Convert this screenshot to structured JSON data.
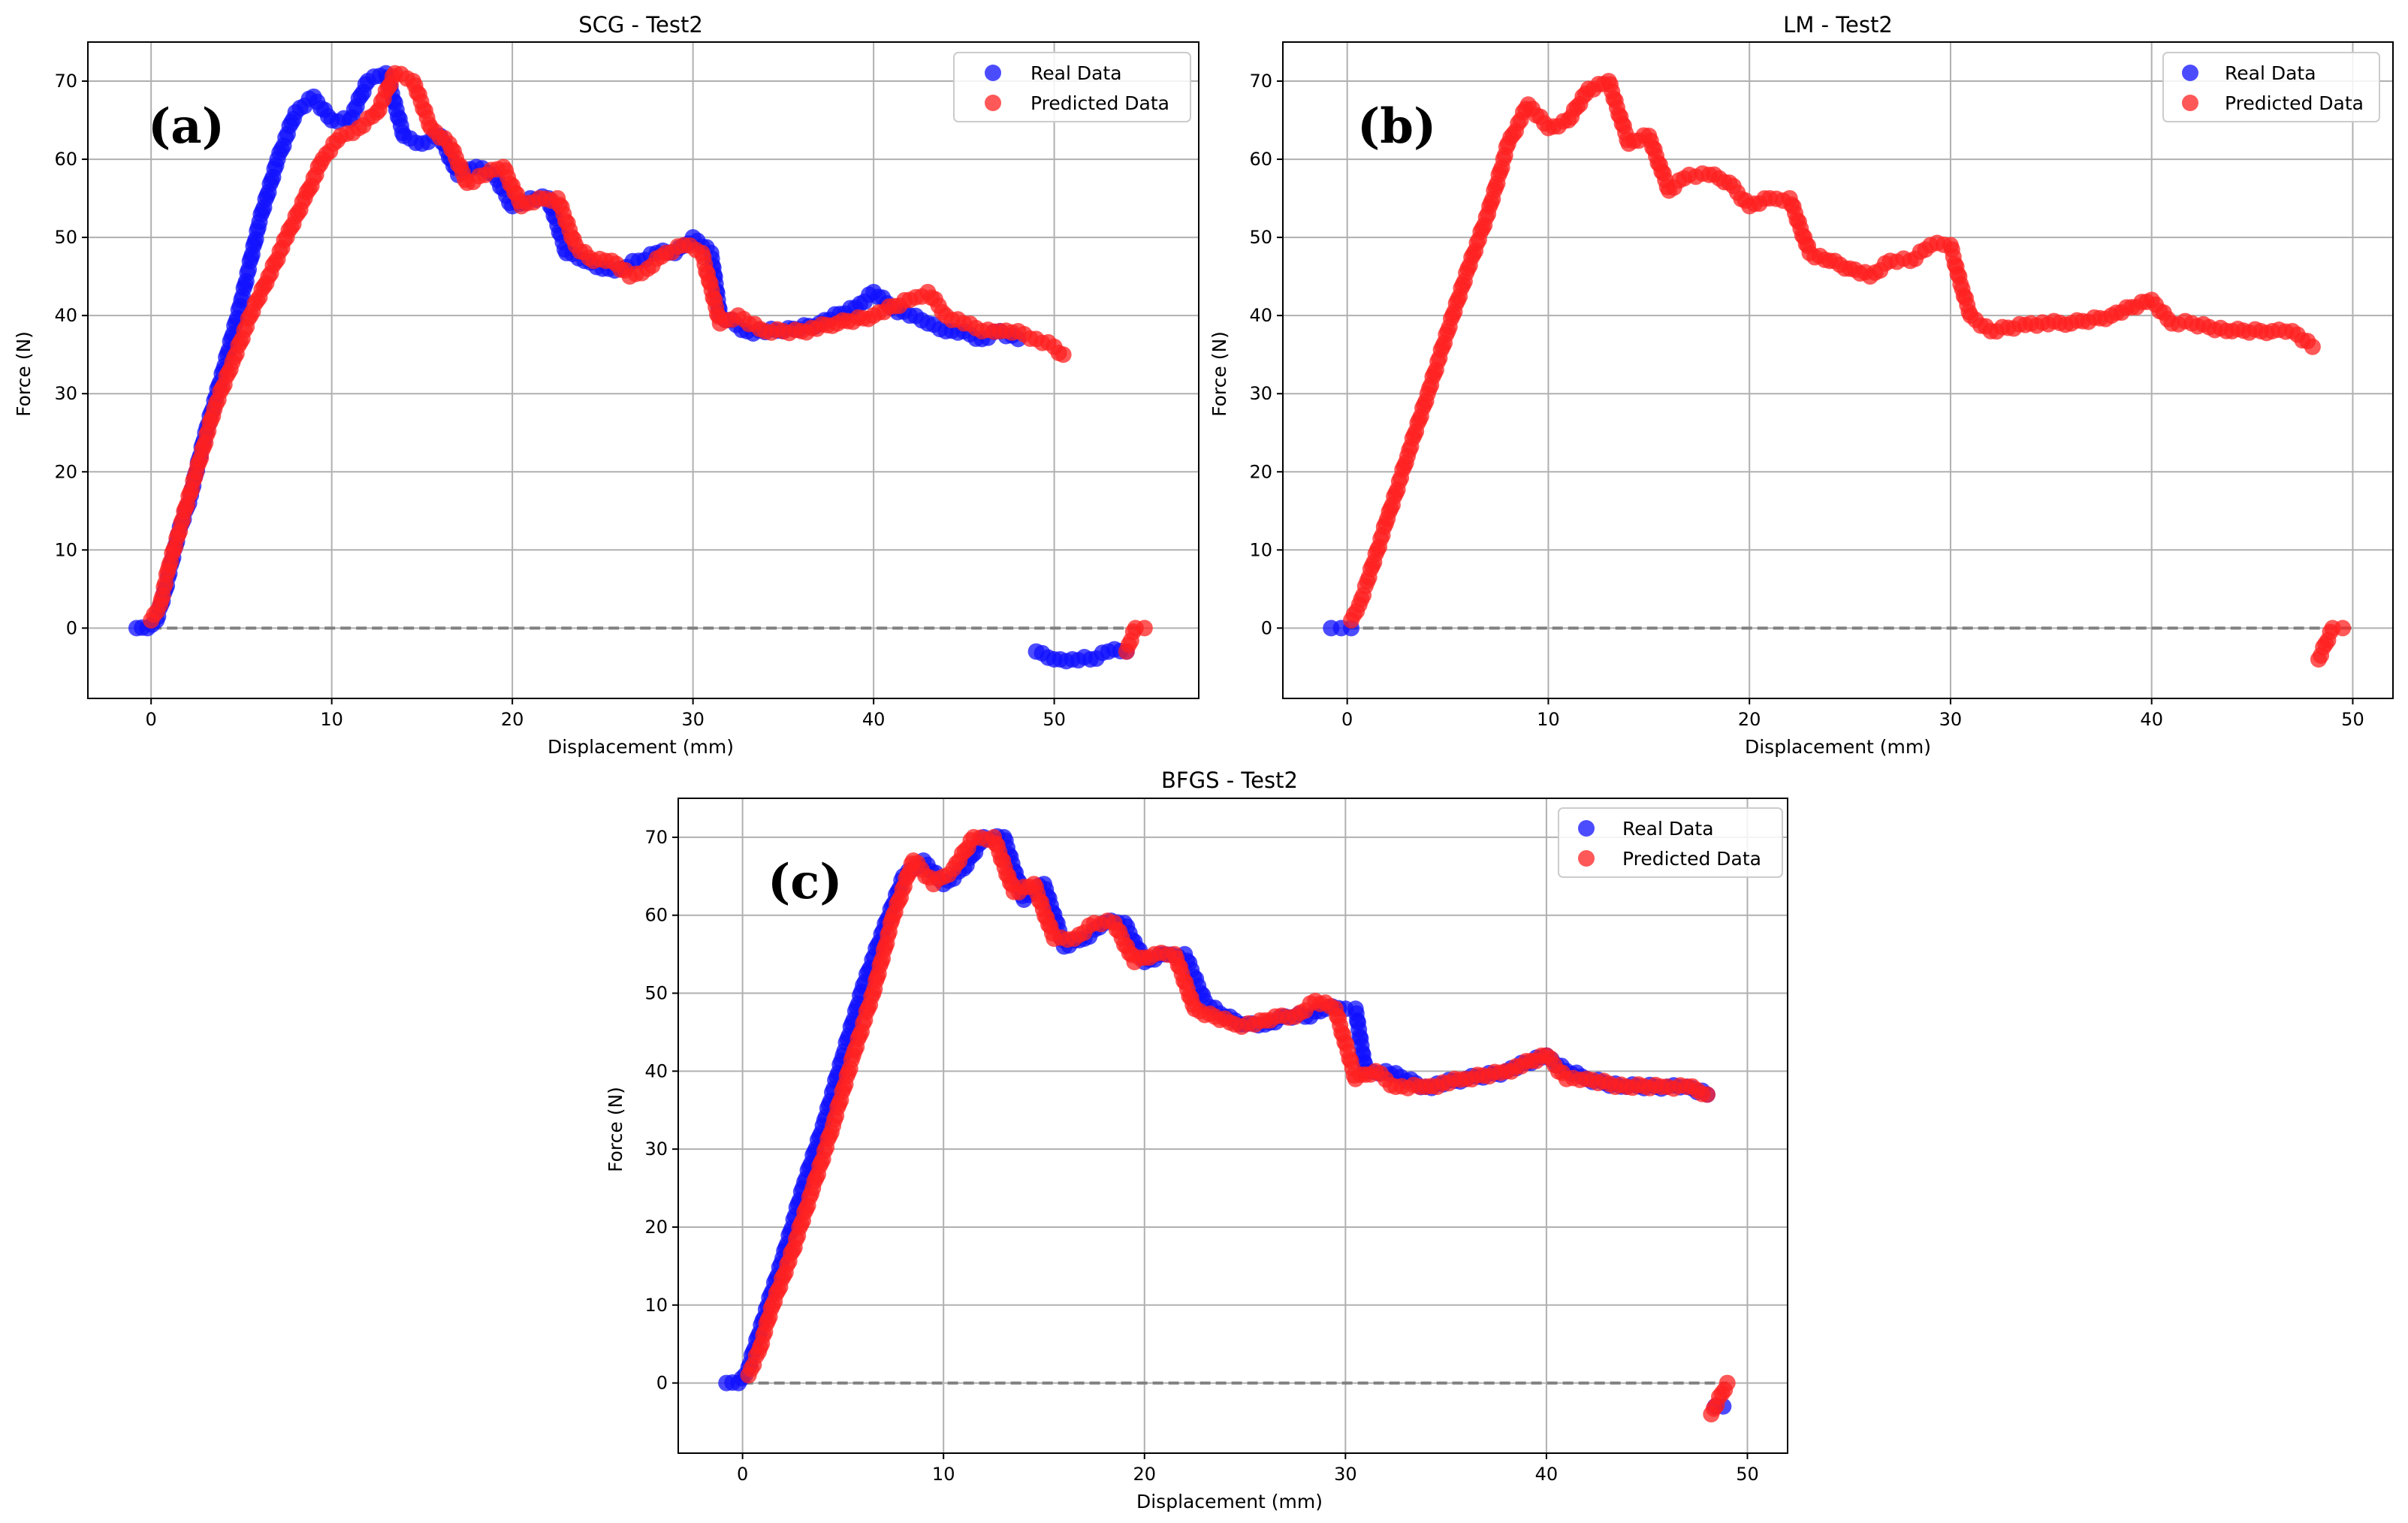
{
  "figure": {
    "description_labels": [
      "(a)",
      "(b)",
      "(c)"
    ]
  },
  "colors": {
    "real": "#1010ff",
    "predicted": "#ff2020",
    "zero_line": "#808080",
    "bridge": "#9a9a9a"
  },
  "chart_data": [
    {
      "type": "scatter",
      "panel_label": "(a)",
      "title": "SCG - Test2",
      "xlabel": "Displacement (mm)",
      "ylabel": "Force (N)",
      "xlim": [
        -3.5,
        58
      ],
      "ylim": [
        -9,
        75
      ],
      "xticks": [
        0,
        10,
        20,
        30,
        40,
        50
      ],
      "yticks": [
        0,
        10,
        20,
        30,
        40,
        50,
        60,
        70
      ],
      "grid": true,
      "legend": {
        "position": "top-right",
        "entries": [
          "Real Data",
          "Predicted Data"
        ]
      },
      "zero_line": {
        "y": 0,
        "x": [
          0,
          55
        ],
        "style": "dashed"
      },
      "series": [
        {
          "name": "Real Data",
          "color": "#1010ff",
          "x": [
            -0.8,
            -0.2,
            0.3,
            0.8,
            1.5,
            2.2,
            3.0,
            4.0,
            5.0,
            6.0,
            7.0,
            8.0,
            9.0,
            10.0,
            11.0,
            12.0,
            13.0,
            14.0,
            15.0,
            16.0,
            17.0,
            18.0,
            19.0,
            20.0,
            21.0,
            22.0,
            23.0,
            24.0,
            25.0,
            26.0,
            27.0,
            28.0,
            29.0,
            30.0,
            31.0,
            31.5,
            33.0,
            35.0,
            37.0,
            39.0,
            40.0,
            41.0,
            42.0,
            43.0,
            44.0,
            45.0,
            46.0,
            47.0,
            48.0,
            49.0,
            50.0,
            51.0,
            52.0,
            53.0,
            54.0
          ],
          "y": [
            0,
            0,
            1,
            5,
            12,
            17,
            25,
            33,
            42,
            52,
            60,
            66,
            68,
            65,
            65,
            70,
            71,
            63,
            62,
            63,
            58,
            59,
            58,
            54,
            55,
            55,
            48,
            47,
            46,
            46,
            47,
            48,
            48,
            50,
            48,
            40,
            38,
            38,
            39,
            41,
            43,
            41,
            40,
            39,
            38,
            38,
            37,
            38,
            37,
            -3,
            -4,
            -4,
            -4,
            -3,
            -3
          ]
        },
        {
          "name": "Predicted Data",
          "color": "#ff2020",
          "x": [
            0.0,
            0.5,
            1.0,
            1.5,
            2.5,
            3.5,
            4.5,
            5.5,
            6.5,
            7.5,
            8.5,
            9.5,
            10.5,
            11.5,
            12.5,
            13.5,
            14.5,
            15.5,
            16.5,
            17.5,
            18.5,
            19.5,
            20.5,
            21.5,
            22.5,
            23.5,
            24.5,
            25.5,
            26.5,
            27.5,
            28.5,
            29.5,
            30.5,
            31.5,
            32.5,
            34.0,
            36.0,
            38.0,
            40.0,
            42.0,
            43.0,
            44.0,
            45.0,
            46.0,
            47.0,
            48.0,
            49.0,
            50.0,
            50.5,
            54.0,
            54.5,
            55.0
          ],
          "y": [
            1,
            3,
            8,
            12,
            20,
            28,
            34,
            40,
            45,
            50,
            55,
            60,
            63,
            64,
            66,
            71,
            70,
            64,
            62,
            57,
            58,
            59,
            54,
            55,
            55,
            49,
            47,
            47,
            45,
            46,
            48,
            49,
            48,
            39,
            40,
            38,
            38,
            39,
            40,
            42,
            43,
            40,
            39,
            38,
            38,
            38,
            37,
            36,
            35,
            -3,
            0,
            0
          ]
        }
      ]
    },
    {
      "type": "scatter",
      "panel_label": "(b)",
      "title": "LM - Test2",
      "xlabel": "Displacement (mm)",
      "ylabel": "Force (N)",
      "xlim": [
        -3.2,
        52
      ],
      "ylim": [
        -9,
        75
      ],
      "xticks": [
        0,
        10,
        20,
        30,
        40,
        50
      ],
      "yticks": [
        0,
        10,
        20,
        30,
        40,
        50,
        60,
        70
      ],
      "grid": true,
      "legend": {
        "position": "top-right",
        "entries": [
          "Real Data",
          "Predicted Data"
        ]
      },
      "zero_line": {
        "y": 0,
        "x": [
          0,
          50
        ],
        "style": "dashed"
      },
      "series": [
        {
          "name": "Real Data",
          "color": "#1010ff",
          "x": [
            -0.8,
            -0.3,
            0.2
          ],
          "y": [
            0,
            0,
            0
          ]
        },
        {
          "name": "Predicted Data",
          "color": "#ff2020",
          "x": [
            0.2,
            0.6,
            1.0,
            1.5,
            2.0,
            3.0,
            4.0,
            5.0,
            6.0,
            7.0,
            8.0,
            9.0,
            10.0,
            11.0,
            12.0,
            13.0,
            14.0,
            15.0,
            16.0,
            17.0,
            18.0,
            19.0,
            20.0,
            21.0,
            22.0,
            23.0,
            24.0,
            25.0,
            26.0,
            27.0,
            28.0,
            29.0,
            30.0,
            30.5,
            31.0,
            32.0,
            34.0,
            36.0,
            38.0,
            40.0,
            41.0,
            42.0,
            44.0,
            46.0,
            47.0,
            48.0,
            48.3,
            49.0,
            49.5
          ],
          "y": [
            1,
            3,
            6,
            10,
            14,
            22,
            30,
            38,
            46,
            53,
            62,
            67,
            64,
            65,
            69,
            70,
            62,
            63,
            56,
            58,
            58,
            57,
            54,
            55,
            55,
            48,
            47,
            46,
            45,
            47,
            47,
            49,
            49,
            44,
            40,
            38,
            39,
            39,
            40,
            42,
            39,
            39,
            38,
            38,
            38,
            36,
            -4,
            0,
            0
          ]
        }
      ]
    },
    {
      "type": "scatter",
      "panel_label": "(c)",
      "title": "BFGS - Test2",
      "xlabel": "Displacement (mm)",
      "ylabel": "Force (N)",
      "xlim": [
        -3.2,
        52
      ],
      "ylim": [
        -9,
        75
      ],
      "xticks": [
        0,
        10,
        20,
        30,
        40,
        50
      ],
      "yticks": [
        0,
        10,
        20,
        30,
        40,
        50,
        60,
        70
      ],
      "grid": true,
      "legend": {
        "position": "top-right",
        "entries": [
          "Real Data",
          "Predicted Data"
        ]
      },
      "zero_line": {
        "y": 0,
        "x": [
          0,
          49
        ],
        "style": "dashed"
      },
      "series": [
        {
          "name": "Real Data",
          "color": "#1010ff",
          "x": [
            -0.8,
            -0.2,
            0.3,
            1.0,
            2.0,
            3.0,
            4.0,
            5.0,
            6.0,
            7.0,
            8.0,
            9.0,
            10.0,
            11.0,
            12.0,
            13.0,
            14.0,
            15.0,
            16.0,
            17.0,
            18.0,
            19.0,
            20.0,
            21.0,
            22.0,
            23.0,
            24.0,
            25.0,
            26.0,
            27.0,
            28.0,
            29.0,
            30.0,
            30.5,
            31.0,
            32.0,
            34.0,
            36.0,
            38.0,
            40.0,
            41.0,
            42.0,
            44.0,
            46.0,
            47.0,
            48.0,
            48.4,
            48.8
          ],
          "y": [
            0,
            0,
            2,
            8,
            16,
            25,
            33,
            42,
            51,
            58,
            65,
            67,
            64,
            66,
            70,
            70,
            62,
            64,
            56,
            57,
            59,
            59,
            54,
            55,
            55,
            49,
            47,
            46,
            46,
            47,
            47,
            48,
            48,
            48,
            40,
            40,
            38,
            39,
            40,
            42,
            40,
            39,
            38,
            38,
            38,
            37,
            -3,
            -3
          ]
        },
        {
          "name": "Predicted Data",
          "color": "#ff2020",
          "x": [
            0.3,
            0.8,
            1.5,
            2.5,
            3.5,
            4.5,
            5.5,
            6.5,
            7.5,
            8.5,
            9.5,
            10.5,
            11.5,
            12.5,
            13.5,
            14.5,
            15.5,
            16.5,
            17.5,
            18.5,
            19.5,
            20.5,
            21.5,
            22.5,
            23.5,
            24.5,
            25.5,
            26.5,
            27.5,
            28.5,
            29.5,
            30.5,
            31.5,
            32.5,
            34.0,
            36.0,
            38.0,
            40.0,
            41.0,
            42.0,
            44.0,
            46.0,
            47.0,
            48.0,
            48.2,
            49.0
          ],
          "y": [
            1,
            4,
            10,
            17,
            25,
            33,
            42,
            50,
            60,
            67,
            64,
            66,
            70,
            70,
            63,
            64,
            57,
            57,
            59,
            59,
            54,
            55,
            55,
            48,
            47,
            46,
            46,
            47,
            47,
            49,
            48,
            39,
            40,
            38,
            38,
            39,
            40,
            42,
            39,
            39,
            38,
            38,
            38,
            37,
            -4,
            0
          ]
        }
      ]
    }
  ]
}
